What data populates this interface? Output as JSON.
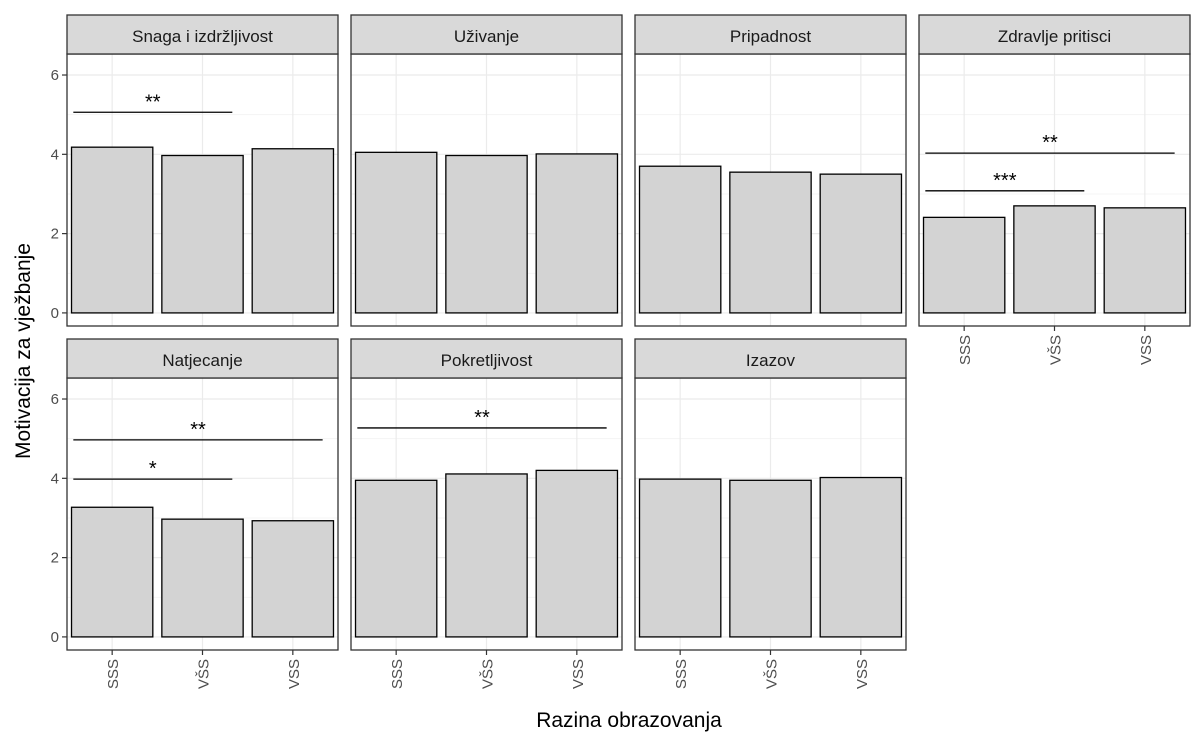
{
  "chart_data": {
    "type": "bar",
    "xlabel": "Razina obrazovanja",
    "ylabel": "Motivacija za vježbanje",
    "categories": [
      "SSS",
      "VŠS",
      "VSS"
    ],
    "ylim": [
      0,
      6.5
    ],
    "yticks": [
      0,
      2,
      4,
      6
    ],
    "grid": true,
    "bar_color": "#d3d3d3",
    "bar_edge_color": "#000000",
    "strip_color": "#d9d9d9",
    "facets": [
      {
        "title": "Snaga i izdržljivost",
        "values": [
          4.18,
          3.97,
          4.14
        ],
        "significance": [
          {
            "from": 0,
            "to": 1,
            "y": 5.06,
            "label": "**"
          }
        ]
      },
      {
        "title": "Uživanje",
        "values": [
          4.05,
          3.97,
          4.01
        ],
        "significance": []
      },
      {
        "title": "Pripadnost",
        "values": [
          3.7,
          3.55,
          3.5
        ],
        "significance": []
      },
      {
        "title": "Zdravlje pritisci",
        "values": [
          2.41,
          2.7,
          2.65
        ],
        "significance": [
          {
            "from": 0,
            "to": 1,
            "y": 3.08,
            "label": "***"
          },
          {
            "from": 0,
            "to": 2,
            "y": 4.03,
            "label": "**"
          }
        ]
      },
      {
        "title": "Natjecanje",
        "values": [
          3.27,
          2.97,
          2.93
        ],
        "significance": [
          {
            "from": 0,
            "to": 1,
            "y": 3.98,
            "label": "*"
          },
          {
            "from": 0,
            "to": 2,
            "y": 4.97,
            "label": "**"
          }
        ]
      },
      {
        "title": "Pokretljivost",
        "values": [
          3.95,
          4.11,
          4.2
        ],
        "significance": [
          {
            "from": 0,
            "to": 2,
            "y": 5.27,
            "label": "**"
          }
        ]
      },
      {
        "title": "Izazov",
        "values": [
          3.98,
          3.95,
          4.02
        ],
        "significance": []
      }
    ]
  }
}
